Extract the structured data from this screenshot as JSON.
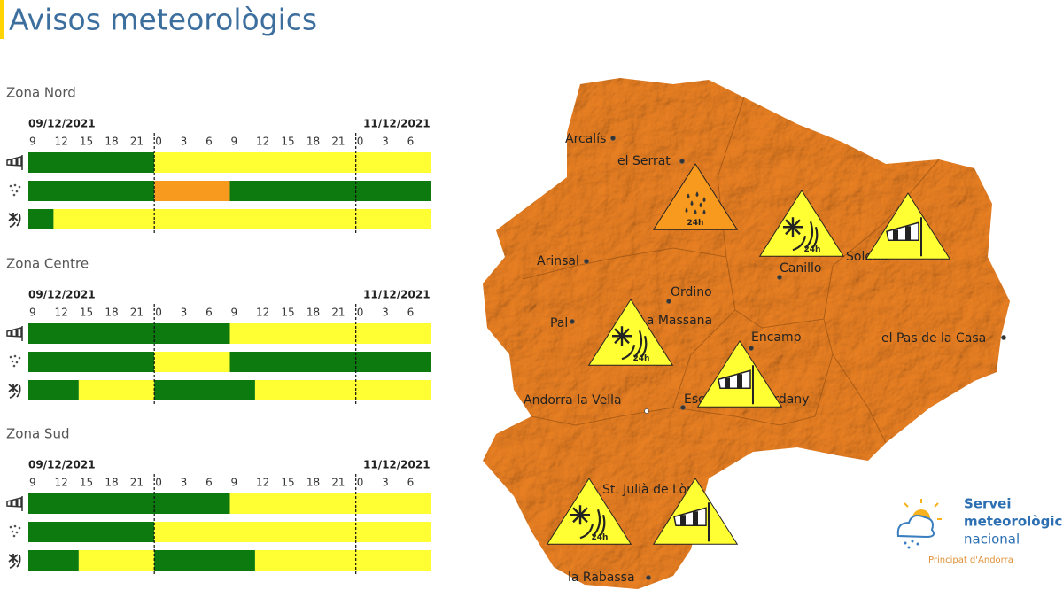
{
  "header": {
    "title": "Avisos meteorològics"
  },
  "timeline": {
    "hours": [
      9,
      12,
      15,
      18,
      21,
      0,
      3,
      6,
      9,
      12,
      15,
      18,
      21,
      0,
      3,
      6
    ],
    "span": [
      0,
      48
    ],
    "colors": {
      "green": "#0d7a10",
      "yellow": "#ffff33",
      "orange": "#f79a1e"
    }
  },
  "zones": [
    {
      "name": "Zona Nord",
      "date_start": "09/12/2021",
      "date_end": "11/12/2021",
      "rows": [
        {
          "type": "wind",
          "segments": [
            {
              "start": 0,
              "end": 15,
              "level": "green"
            },
            {
              "start": 15,
              "end": 48,
              "level": "yellow"
            }
          ]
        },
        {
          "type": "rain",
          "segments": [
            {
              "start": 0,
              "end": 15,
              "level": "green"
            },
            {
              "start": 15,
              "end": 24,
              "level": "orange"
            },
            {
              "start": 24,
              "end": 48,
              "level": "green"
            }
          ]
        },
        {
          "type": "snow",
          "segments": [
            {
              "start": 0,
              "end": 3,
              "level": "green"
            },
            {
              "start": 3,
              "end": 48,
              "level": "yellow"
            }
          ]
        }
      ]
    },
    {
      "name": "Zona Centre",
      "date_start": "09/12/2021",
      "date_end": "11/12/2021",
      "rows": [
        {
          "type": "wind",
          "segments": [
            {
              "start": 0,
              "end": 24,
              "level": "green"
            },
            {
              "start": 24,
              "end": 48,
              "level": "yellow"
            }
          ]
        },
        {
          "type": "rain",
          "segments": [
            {
              "start": 0,
              "end": 15,
              "level": "green"
            },
            {
              "start": 15,
              "end": 24,
              "level": "yellow"
            },
            {
              "start": 24,
              "end": 48,
              "level": "green"
            }
          ]
        },
        {
          "type": "snow",
          "segments": [
            {
              "start": 0,
              "end": 6,
              "level": "green"
            },
            {
              "start": 6,
              "end": 15,
              "level": "yellow"
            },
            {
              "start": 15,
              "end": 27,
              "level": "green"
            },
            {
              "start": 27,
              "end": 48,
              "level": "yellow"
            }
          ]
        }
      ]
    },
    {
      "name": "Zona Sud",
      "date_start": "09/12/2021",
      "date_end": "11/12/2021",
      "rows": [
        {
          "type": "wind",
          "segments": [
            {
              "start": 0,
              "end": 24,
              "level": "green"
            },
            {
              "start": 24,
              "end": 48,
              "level": "yellow"
            }
          ]
        },
        {
          "type": "rain",
          "segments": [
            {
              "start": 0,
              "end": 15,
              "level": "green"
            },
            {
              "start": 15,
              "end": 48,
              "level": "yellow"
            }
          ]
        },
        {
          "type": "snow",
          "segments": [
            {
              "start": 0,
              "end": 6,
              "level": "green"
            },
            {
              "start": 6,
              "end": 15,
              "level": "yellow"
            },
            {
              "start": 15,
              "end": 27,
              "level": "green"
            },
            {
              "start": 27,
              "end": 48,
              "level": "yellow"
            }
          ]
        }
      ]
    }
  ],
  "map": {
    "towns": [
      "Arcalís",
      "el Serrat",
      "Arinsal",
      "Canillo",
      "Soldeu",
      "Ordino",
      "Pal",
      "La Massana",
      "Encamp",
      "el Pas de la Casa",
      "Andorra la Vella",
      "Escaldes-Engordany",
      "St. Julià de Lòria",
      "la Rabassa"
    ],
    "warnings": [
      {
        "type": "rain",
        "level": "orange",
        "label": "24h"
      },
      {
        "type": "snow",
        "level": "yellow",
        "label": "24h"
      },
      {
        "type": "wind",
        "level": "yellow"
      },
      {
        "type": "snow",
        "level": "yellow",
        "label": "24h"
      },
      {
        "type": "wind",
        "level": "yellow"
      },
      {
        "type": "snow",
        "level": "yellow",
        "label": "24h"
      },
      {
        "type": "wind",
        "level": "yellow"
      }
    ]
  },
  "logo": {
    "line1": "Servei",
    "line2": "meteorològic",
    "line3": "nacional",
    "subtitle": "Principat d'Andorra"
  }
}
